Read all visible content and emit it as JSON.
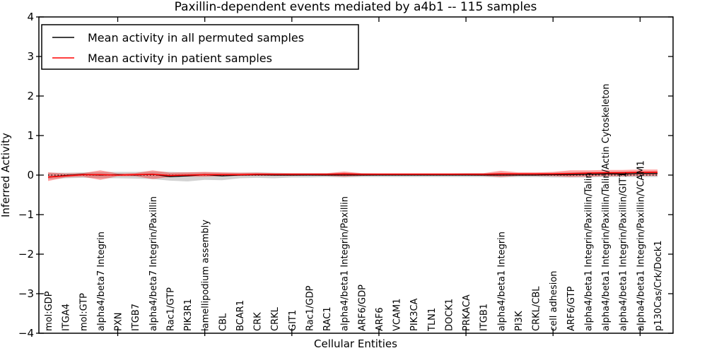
{
  "title": "Paxillin-dependent events mediated by a4b1 -- 115 samples",
  "axes": {
    "xlabel": "Cellular Entities",
    "ylabel": "Inferred Activity",
    "ytick_labels": [
      "4",
      "3",
      "2",
      "1",
      "0",
      "−1",
      "−2",
      "−3",
      "−4"
    ]
  },
  "legend": {
    "items": [
      {
        "label": "Mean activity in all permuted samples",
        "color": "#000000"
      },
      {
        "label": "Mean activity in patient samples",
        "color": "#ff0000"
      }
    ]
  },
  "chart_data": {
    "type": "line",
    "title": "Paxillin-dependent events mediated by a4b1 -- 115 samples",
    "xlabel": "Cellular Entities",
    "ylabel": "Inferred Activity",
    "ylim": [
      -4,
      4
    ],
    "yticks": [
      4,
      3,
      2,
      1,
      0,
      -1,
      -2,
      -3,
      -4
    ],
    "zero_reference_line": true,
    "xtick_marks_every": 5,
    "legend_position": "upper left",
    "grid": false,
    "categories": [
      "mol:GDP",
      "ITGA4",
      "mol:GTP",
      "alpha4/beta7 Integrin",
      "PXN",
      "ITGB7",
      "alpha4/beta7 Integrin/Paxillin",
      "Rac1/GTP",
      "PIK3R1",
      "lamellipodium assembly",
      "CBL",
      "BCAR1",
      "CRK",
      "CRKL",
      "GIT1",
      "Rac1/GDP",
      "RAC1",
      "alpha4/beta1 Integrin/Paxillin",
      "ARF6/GDP",
      "ARF6",
      "VCAM1",
      "PIK3CA",
      "TLN1",
      "DOCK1",
      "PRKACA",
      "ITGB1",
      "alpha4/beta1 Integrin",
      "PI3K",
      "CRKL/CBL",
      "cell adhesion",
      "ARF6/GTP",
      "alpha4/beta1 Integrin/Paxillin/Talin",
      "alpha4/beta1 Integrin/Paxillin/Talin/Actin Cytoskeleton",
      "alpha4/beta1 Integrin/Paxillin/GIT1",
      "alpha4/beta1 Integrin/Paxillin/VCAM1",
      "p130Cas/Crk/Dock1"
    ],
    "series": [
      {
        "name": "Mean activity in all permuted samples",
        "color": "#000000",
        "band_color": "rgba(128,128,128,0.35)",
        "values": [
          -0.05,
          -0.01,
          0.02,
          0.0,
          0.01,
          0.0,
          0.02,
          -0.04,
          -0.02,
          0.01,
          -0.02,
          0.0,
          0.01,
          0.0,
          0.0,
          0.0,
          0.0,
          0.0,
          0.0,
          0.0,
          0.0,
          0.0,
          0.0,
          0.0,
          0.0,
          0.0,
          0.0,
          0.0,
          0.0,
          0.01,
          0.01,
          0.02,
          0.03,
          0.03,
          0.04,
          0.04
        ],
        "band_upper": [
          0.06,
          0.06,
          0.07,
          0.08,
          0.08,
          0.08,
          0.09,
          0.08,
          0.07,
          0.07,
          0.06,
          0.06,
          0.07,
          0.06,
          0.05,
          0.05,
          0.05,
          0.06,
          0.05,
          0.04,
          0.04,
          0.04,
          0.04,
          0.04,
          0.05,
          0.05,
          0.06,
          0.05,
          0.05,
          0.06,
          0.07,
          0.08,
          0.08,
          0.09,
          0.09,
          0.1
        ],
        "band_lower": [
          -0.1,
          -0.08,
          -0.07,
          -0.08,
          -0.08,
          -0.09,
          -0.1,
          -0.14,
          -0.16,
          -0.12,
          -0.13,
          -0.08,
          -0.07,
          -0.08,
          -0.06,
          -0.06,
          -0.05,
          -0.06,
          -0.05,
          -0.05,
          -0.05,
          -0.05,
          -0.05,
          -0.05,
          -0.05,
          -0.05,
          -0.06,
          -0.05,
          -0.05,
          -0.06,
          -0.06,
          -0.06,
          -0.05,
          -0.05,
          -0.05,
          -0.05
        ]
      },
      {
        "name": "Mean activity in patient samples",
        "color": "#ff0000",
        "band_color": "rgba(255,0,0,0.35)",
        "values": [
          -0.05,
          -0.02,
          0.01,
          0.01,
          0.0,
          0.01,
          0.02,
          -0.01,
          0.0,
          0.01,
          0.01,
          0.01,
          0.02,
          0.02,
          0.02,
          0.02,
          0.02,
          0.03,
          0.02,
          0.02,
          0.02,
          0.02,
          0.02,
          0.02,
          0.02,
          0.02,
          0.03,
          0.03,
          0.03,
          0.03,
          0.04,
          0.05,
          0.06,
          0.06,
          0.07,
          0.07
        ],
        "band_upper": [
          0.07,
          0.04,
          0.05,
          0.12,
          0.04,
          0.05,
          0.12,
          0.06,
          0.07,
          0.08,
          0.07,
          0.06,
          0.06,
          0.05,
          0.05,
          0.05,
          0.05,
          0.09,
          0.05,
          0.05,
          0.05,
          0.05,
          0.05,
          0.05,
          0.05,
          0.05,
          0.11,
          0.07,
          0.07,
          0.08,
          0.12,
          0.12,
          0.13,
          0.13,
          0.14,
          0.14
        ],
        "band_lower": [
          -0.15,
          -0.06,
          -0.04,
          -0.12,
          -0.03,
          -0.03,
          -0.1,
          -0.05,
          -0.04,
          -0.04,
          -0.03,
          -0.02,
          -0.02,
          -0.02,
          -0.02,
          -0.01,
          -0.02,
          -0.04,
          -0.02,
          -0.01,
          -0.01,
          -0.01,
          -0.01,
          -0.01,
          -0.01,
          -0.02,
          -0.05,
          -0.02,
          -0.02,
          -0.03,
          -0.05,
          -0.04,
          -0.03,
          -0.03,
          -0.02,
          -0.02
        ]
      }
    ]
  }
}
